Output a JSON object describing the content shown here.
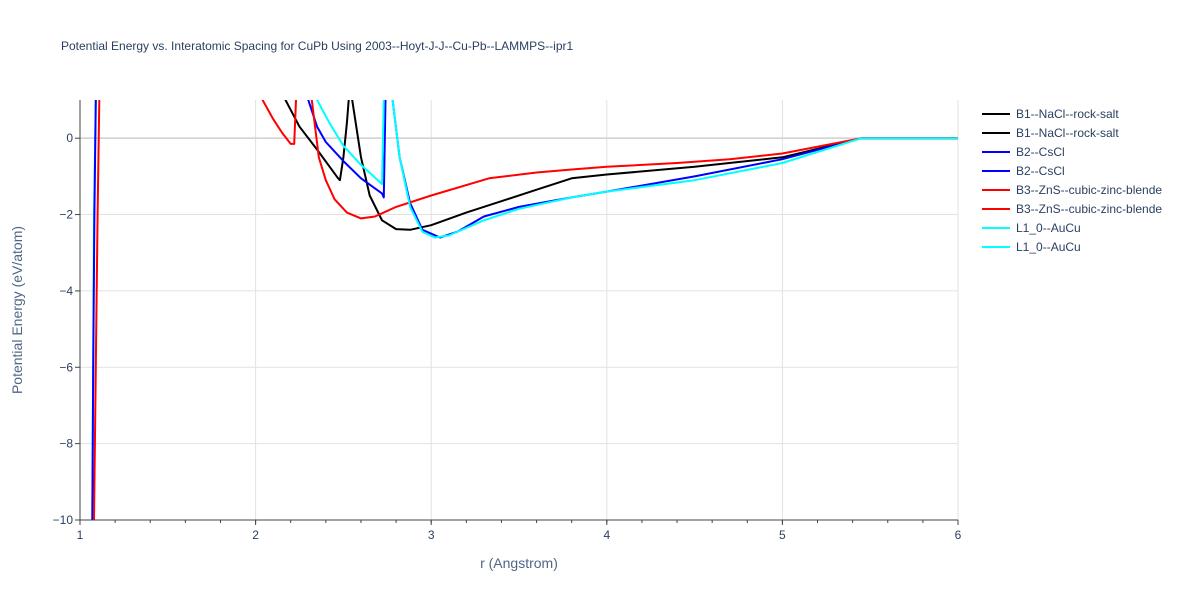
{
  "chart_data": {
    "type": "line",
    "title": "Potential Energy vs. Interatomic Spacing for CuPb Using 2003--Hoyt-J-J--Cu-Pb--LAMMPS--ipr1",
    "xlabel": "r (Angstrom)",
    "ylabel": "Potential Energy (eV/atom)",
    "xlim": [
      1,
      6
    ],
    "ylim": [
      -10,
      1
    ],
    "x_ticks": [
      1,
      2,
      3,
      4,
      5,
      6
    ],
    "y_ticks": [
      0,
      -2,
      -4,
      -6,
      -8,
      -10
    ],
    "x_tick_labels": [
      "1",
      "2",
      "3",
      "4",
      "5",
      "6"
    ],
    "y_tick_labels": [
      "0",
      "−2",
      "−4",
      "−6",
      "−8",
      "−10"
    ],
    "grid": true,
    "legend_position": "right",
    "series": [
      {
        "name": "B1--NaCl--rock-salt",
        "color": "#000000",
        "x": [
          2.17,
          2.25,
          2.35,
          2.47,
          2.48,
          2.5,
          2.52,
          2.53
        ],
        "y": [
          1.0,
          0.3,
          -0.3,
          -1.05,
          -1.1,
          -0.5,
          0.4,
          1.0
        ]
      },
      {
        "name": "B1--NaCl--rock-salt",
        "color": "#000000",
        "x": [
          2.55,
          2.6,
          2.65,
          2.72,
          2.8,
          2.88,
          3.0,
          3.2,
          3.4,
          3.6,
          3.8,
          4.0,
          4.5,
          5.0,
          5.45,
          6.0
        ],
        "y": [
          1.0,
          -0.5,
          -1.5,
          -2.15,
          -2.38,
          -2.4,
          -2.28,
          -1.95,
          -1.65,
          -1.35,
          -1.05,
          -0.95,
          -0.75,
          -0.5,
          0.0,
          0.0
        ]
      },
      {
        "name": "B2--CsCl",
        "color": "#0000ff",
        "x": [
          2.3,
          2.35,
          2.4,
          2.5,
          2.6,
          2.72,
          2.73,
          2.74
        ],
        "y": [
          1.0,
          0.3,
          -0.1,
          -0.6,
          -1.05,
          -1.45,
          -1.55,
          1.0
        ]
      },
      {
        "name": "B2--CsCl",
        "color": "#0000ff",
        "x": [
          2.78,
          2.82,
          2.88,
          2.95,
          3.05,
          3.15,
          3.3,
          3.5,
          3.8,
          4.0,
          4.5,
          5.0,
          5.45,
          6.0
        ],
        "y": [
          1.0,
          -0.5,
          -1.7,
          -2.4,
          -2.6,
          -2.45,
          -2.05,
          -1.8,
          -1.55,
          -1.4,
          -1.0,
          -0.55,
          0.0,
          0.0
        ]
      },
      {
        "name": "B3--ZnS--cubic-zinc-blende",
        "color": "#ff0000",
        "x": [
          2.04,
          2.1,
          2.15,
          2.2,
          2.22,
          2.23
        ],
        "y": [
          1.0,
          0.5,
          0.15,
          -0.15,
          -0.15,
          1.0
        ]
      },
      {
        "name": "B3--ZnS--cubic-zinc-blende",
        "color": "#ff0000",
        "x": [
          2.32,
          2.36,
          2.4,
          2.45,
          2.52,
          2.6,
          2.68,
          2.8,
          3.0,
          3.33,
          3.6,
          3.8,
          4.0,
          4.4,
          4.7,
          5.0,
          5.45,
          6.0
        ],
        "y": [
          1.0,
          -0.5,
          -1.1,
          -1.6,
          -1.95,
          -2.1,
          -2.05,
          -1.8,
          -1.5,
          -1.05,
          -0.9,
          -0.82,
          -0.75,
          -0.65,
          -0.55,
          -0.4,
          0.0,
          0.0
        ]
      },
      {
        "name": "L1_0--AuCu",
        "color": "#00ffff",
        "x": [
          2.35,
          2.42,
          2.5,
          2.6,
          2.72,
          2.73
        ],
        "y": [
          1.0,
          0.4,
          -0.2,
          -0.7,
          -1.2,
          1.0
        ]
      },
      {
        "name": "L1_0--AuCu",
        "color": "#00ffff",
        "x": [
          2.78,
          2.82,
          2.88,
          2.95,
          3.02,
          3.1,
          3.3,
          3.5,
          3.8,
          4.0,
          4.5,
          5.0,
          5.45,
          6.0
        ],
        "y": [
          1.0,
          -0.5,
          -1.8,
          -2.45,
          -2.6,
          -2.55,
          -2.15,
          -1.85,
          -1.55,
          -1.4,
          -1.1,
          -0.65,
          0.0,
          0.0
        ]
      }
    ],
    "extra_lines": [
      {
        "color": "#00ffff",
        "x": [
          1.07,
          1.075,
          1.08,
          1.09
        ],
        "y": [
          -10,
          -6,
          -2,
          1.0
        ]
      },
      {
        "color": "#0000ff",
        "x": [
          1.07,
          1.075,
          1.082,
          1.09
        ],
        "y": [
          -10,
          -6,
          -2,
          1.0
        ]
      },
      {
        "color": "#ff0000",
        "x": [
          1.08,
          1.09,
          1.1,
          1.11
        ],
        "y": [
          -10,
          -6,
          -2,
          1.0
        ]
      }
    ]
  }
}
